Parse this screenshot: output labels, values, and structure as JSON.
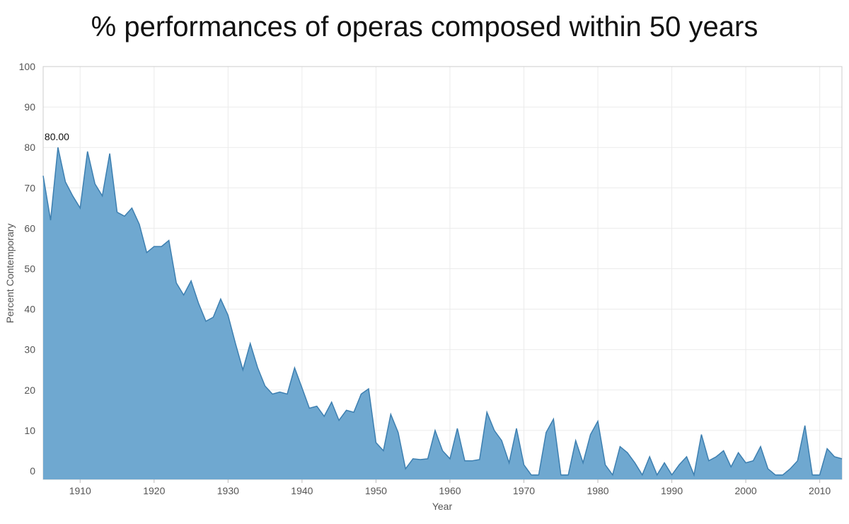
{
  "chart_data": {
    "type": "area",
    "title": "% performances of operas composed within 50 years",
    "xlabel": "Year",
    "ylabel": "Percent Contemporary",
    "xlim": [
      1905,
      2013
    ],
    "ylim": [
      0,
      100
    ],
    "x_ticks": [
      1910,
      1920,
      1930,
      1940,
      1950,
      1960,
      1970,
      1980,
      1990,
      2000,
      2010
    ],
    "y_ticks": [
      0,
      10,
      20,
      30,
      40,
      50,
      60,
      70,
      80,
      90,
      100
    ],
    "grid": true,
    "color": "#6fa8d0",
    "line_color": "#3d7fb0",
    "annotation": {
      "x": 1907,
      "y": 80.0,
      "text": "80.00"
    },
    "series": [
      {
        "x": [
          1905,
          1906,
          1907,
          1908,
          1909,
          1910,
          1911,
          1912,
          1913,
          1914,
          1915,
          1916,
          1917,
          1918,
          1919,
          1920,
          1921,
          1922,
          1923,
          1924,
          1925,
          1926,
          1927,
          1928,
          1929,
          1930,
          1931,
          1932,
          1933,
          1934,
          1935,
          1936,
          1937,
          1938,
          1939,
          1940,
          1941,
          1942,
          1943,
          1944,
          1945,
          1946,
          1947,
          1948,
          1949,
          1950,
          1951,
          1952,
          1953,
          1954,
          1955,
          1956,
          1957,
          1958,
          1959,
          1960,
          1961,
          1962,
          1963,
          1964,
          1965,
          1966,
          1967,
          1968,
          1969,
          1970,
          1971,
          1972,
          1973,
          1974,
          1975,
          1976,
          1977,
          1978,
          1979,
          1980,
          1981,
          1982,
          1983,
          1984,
          1985,
          1986,
          1987,
          1988,
          1989,
          1990,
          1991,
          1992,
          1993,
          1994,
          1995,
          1996,
          1997,
          1998,
          1999,
          2000,
          2001,
          2002,
          2003,
          2004,
          2005,
          2006,
          2007,
          2008,
          2009,
          2010,
          2011,
          2012,
          2013
        ],
        "values": [
          73,
          62,
          80,
          71.5,
          68,
          65,
          79,
          71,
          68,
          78.5,
          64,
          63,
          65,
          61,
          54,
          55.5,
          55.5,
          57,
          46.5,
          43.5,
          47,
          41.5,
          37,
          38,
          42.5,
          38.5,
          31.5,
          25,
          31.5,
          25.5,
          21,
          19,
          19.5,
          19,
          25.5,
          20.5,
          15.5,
          16,
          13.5,
          17,
          12.5,
          15,
          14.5,
          19,
          20.3,
          7,
          5,
          14,
          9.5,
          0.5,
          3,
          2.8,
          3,
          10,
          5,
          3,
          10.5,
          2.5,
          2.5,
          2.8,
          14.5,
          10,
          7.5,
          2,
          10.5,
          1.5,
          -1,
          -1,
          9.5,
          12.8,
          -1,
          -1,
          7.5,
          2,
          9,
          12.3,
          1.5,
          -1,
          6,
          4.5,
          2,
          -1,
          3.5,
          -1,
          2,
          -1,
          1.5,
          3.5,
          -1,
          9,
          2.5,
          3.5,
          5,
          1,
          4.5,
          2,
          2.5,
          6,
          0.5,
          -1,
          -1,
          0.5,
          2.5,
          11.2,
          -1,
          -1,
          5.5,
          3.5,
          3
        ]
      }
    ]
  }
}
